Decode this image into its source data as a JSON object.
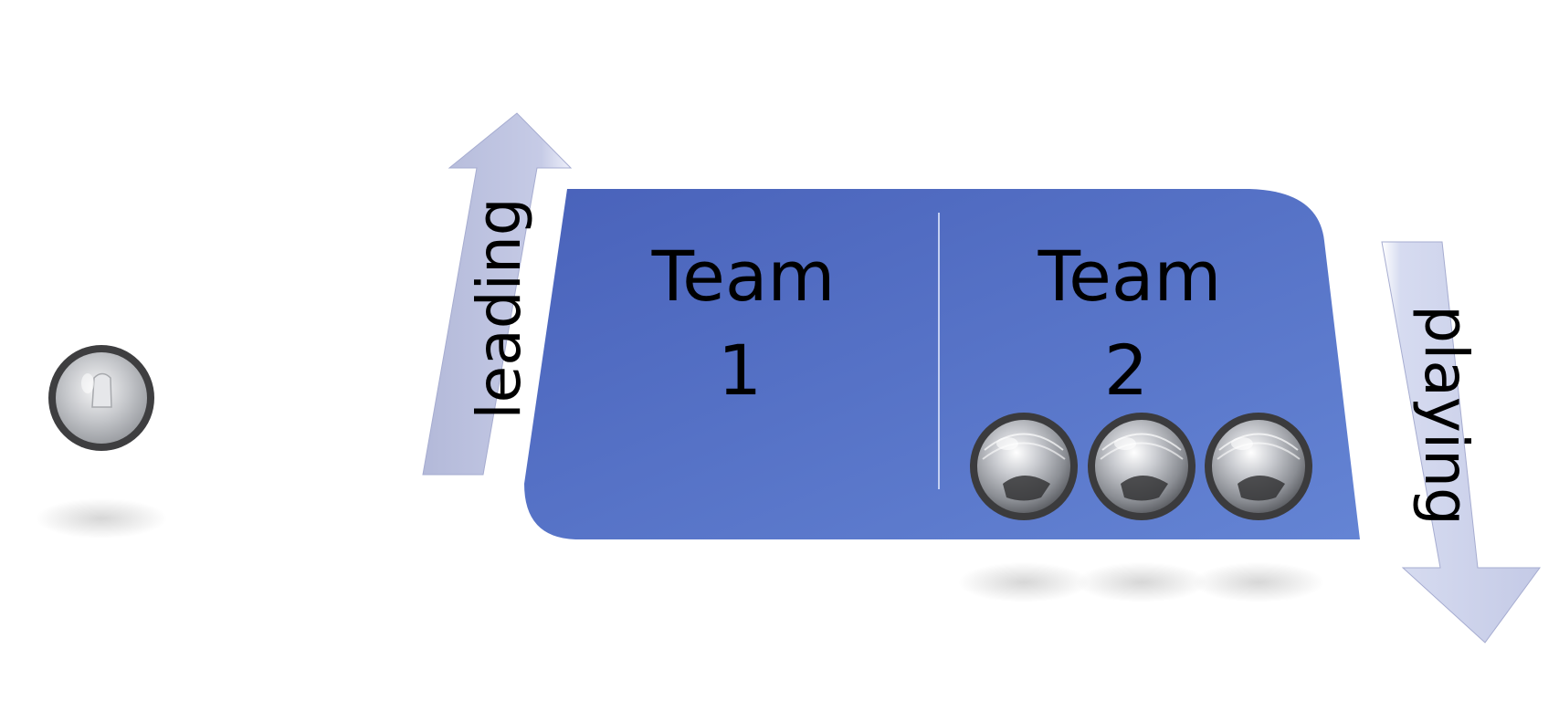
{
  "diagram": {
    "team1": {
      "line1": "Team",
      "line2": "1"
    },
    "team2": {
      "line1": "Team",
      "line2": "2"
    },
    "arrow_up_label": "leading",
    "arrow_down_label": "playing",
    "team2_ball_count": 3,
    "colors": {
      "panel": "#5470c4",
      "arrow": "#c2c8e4",
      "ball": "#b9bcc2",
      "ball_rim": "#3b3b3d"
    }
  }
}
